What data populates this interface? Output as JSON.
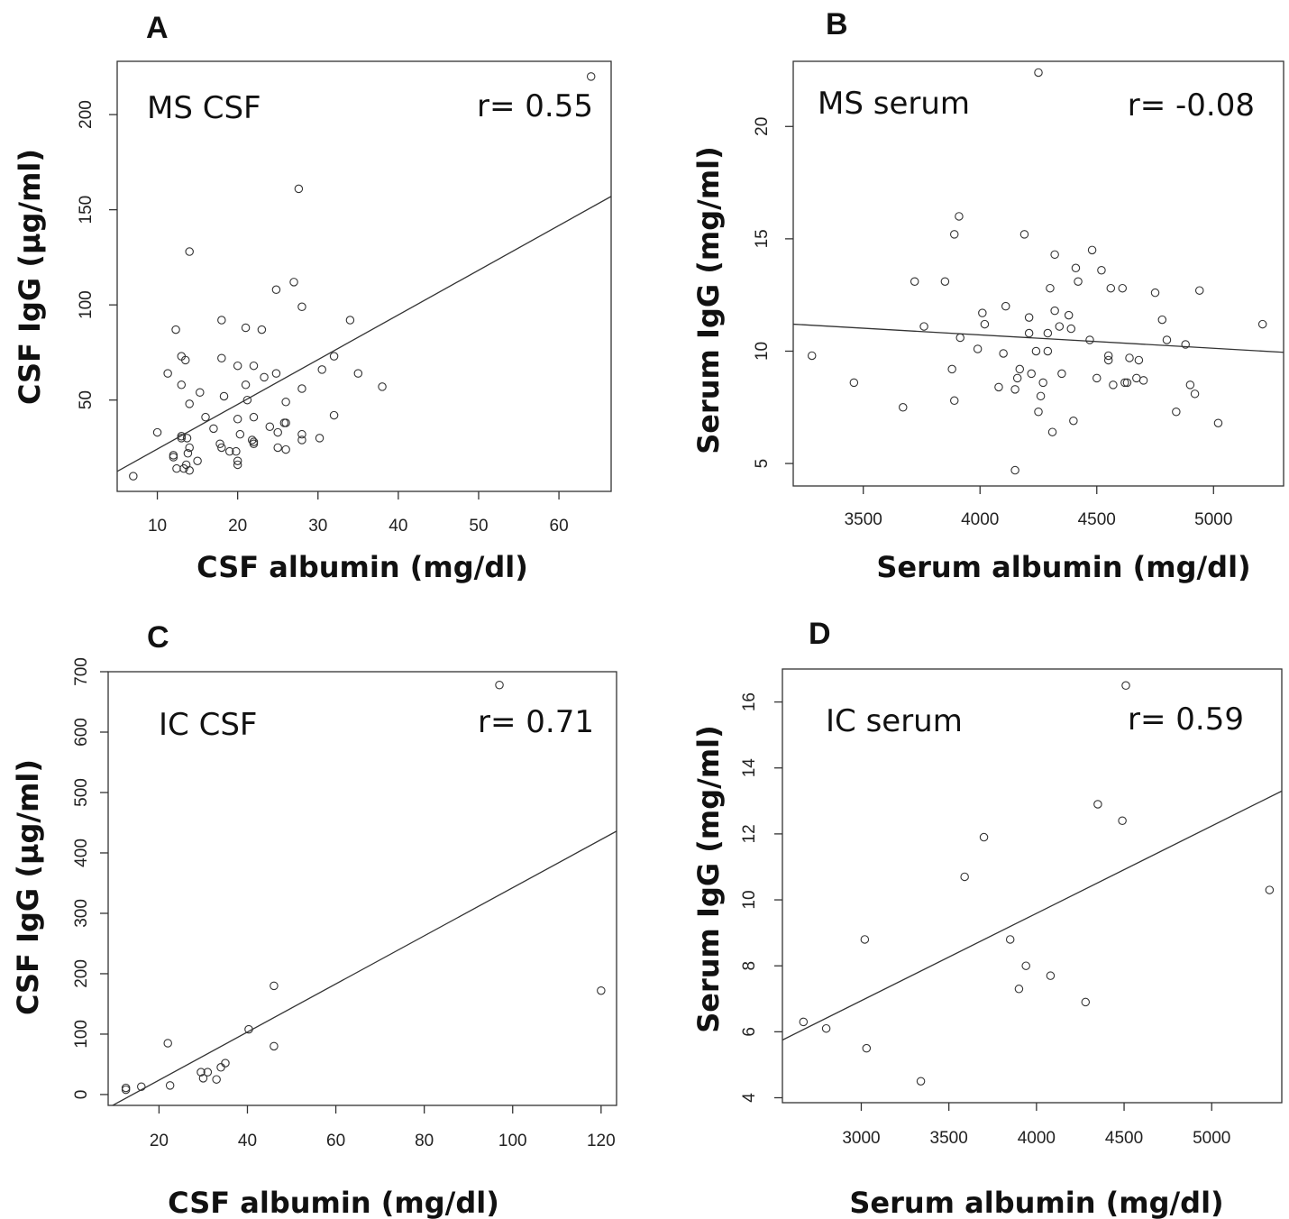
{
  "chart_data": [
    {
      "type": "scatter",
      "panel": "A",
      "label": "MS CSF",
      "r_text": "r= 0.55",
      "xlabel": "CSF albumin (mg/dl)",
      "ylabel": "CSF IgG (µg/ml)",
      "xlim": [
        5,
        66.5
      ],
      "ylim": [
        2,
        228
      ],
      "xticks": [
        10,
        20,
        30,
        40,
        50,
        60
      ],
      "yticks": [
        50,
        100,
        150,
        200
      ],
      "ytick_rotated": true,
      "fit": [
        [
          5,
          12.5
        ],
        [
          66.5,
          157
        ]
      ],
      "points": [
        [
          7,
          10
        ],
        [
          10,
          33
        ],
        [
          11.3,
          64
        ],
        [
          12,
          21
        ],
        [
          12,
          20
        ],
        [
          12.3,
          87
        ],
        [
          12.4,
          14
        ],
        [
          13,
          31
        ],
        [
          13,
          73
        ],
        [
          13,
          58
        ],
        [
          13,
          30
        ],
        [
          13.3,
          14
        ],
        [
          13.5,
          71
        ],
        [
          13.6,
          16
        ],
        [
          13.7,
          30
        ],
        [
          13.8,
          22
        ],
        [
          14,
          25
        ],
        [
          14,
          13
        ],
        [
          14,
          48
        ],
        [
          14,
          128
        ],
        [
          15,
          18
        ],
        [
          15.3,
          54
        ],
        [
          16,
          41
        ],
        [
          17,
          35
        ],
        [
          17.8,
          27
        ],
        [
          18,
          25
        ],
        [
          18,
          72
        ],
        [
          18,
          92
        ],
        [
          18.3,
          52
        ],
        [
          19,
          23
        ],
        [
          19.8,
          23
        ],
        [
          20,
          40
        ],
        [
          20,
          18
        ],
        [
          20,
          16
        ],
        [
          20,
          68
        ],
        [
          20.3,
          32
        ],
        [
          21,
          58
        ],
        [
          21,
          88
        ],
        [
          21.2,
          50
        ],
        [
          21.8,
          29
        ],
        [
          22,
          68
        ],
        [
          22,
          27
        ],
        [
          22,
          41
        ],
        [
          22,
          28
        ],
        [
          23,
          87
        ],
        [
          23.3,
          62
        ],
        [
          24,
          36
        ],
        [
          24.8,
          64
        ],
        [
          24.8,
          108
        ],
        [
          25,
          25
        ],
        [
          25,
          33
        ],
        [
          25.8,
          38
        ],
        [
          26,
          38
        ],
        [
          26,
          24
        ],
        [
          26,
          49
        ],
        [
          27,
          112
        ],
        [
          27.6,
          161
        ],
        [
          28,
          32
        ],
        [
          28,
          29
        ],
        [
          28,
          56
        ],
        [
          28,
          99
        ],
        [
          30.2,
          30
        ],
        [
          30.5,
          66
        ],
        [
          32,
          73
        ],
        [
          32,
          42
        ],
        [
          34,
          92
        ],
        [
          35,
          64
        ],
        [
          38,
          57
        ],
        [
          64,
          220
        ]
      ]
    },
    {
      "type": "scatter",
      "panel": "B",
      "label": "MS serum",
      "r_text": "r= -0.08",
      "xlabel": "Serum albumin (mg/dl)",
      "ylabel": "Serum IgG (mg/ml)",
      "xlim": [
        3200,
        5300
      ],
      "ylim": [
        4,
        22.9
      ],
      "xticks": [
        3500,
        4000,
        4500,
        5000
      ],
      "yticks": [
        5,
        10,
        15,
        20
      ],
      "ytick_rotated": true,
      "fit": [
        [
          3200,
          11.2
        ],
        [
          5300,
          9.95
        ]
      ],
      "points": [
        [
          3280,
          9.8
        ],
        [
          3460,
          8.6
        ],
        [
          3670,
          7.5
        ],
        [
          3720,
          13.1
        ],
        [
          3760,
          11.1
        ],
        [
          3850,
          13.1
        ],
        [
          3880,
          9.2
        ],
        [
          3890,
          7.8
        ],
        [
          3890,
          15.2
        ],
        [
          3910,
          16
        ],
        [
          3915,
          10.6
        ],
        [
          3990,
          10.1
        ],
        [
          4010,
          11.7
        ],
        [
          4020,
          11.2
        ],
        [
          4080,
          8.4
        ],
        [
          4110,
          12
        ],
        [
          4100,
          9.9
        ],
        [
          4150,
          4.7
        ],
        [
          4150,
          8.3
        ],
        [
          4160,
          8.8
        ],
        [
          4170,
          9.2
        ],
        [
          4190,
          15.2
        ],
        [
          4210,
          11.5
        ],
        [
          4210,
          10.8
        ],
        [
          4220,
          9
        ],
        [
          4240,
          10
        ],
        [
          4250,
          7.3
        ],
        [
          4250,
          22.4
        ],
        [
          4260,
          8
        ],
        [
          4270,
          8.6
        ],
        [
          4290,
          10.8
        ],
        [
          4290,
          10
        ],
        [
          4300,
          12.8
        ],
        [
          4310,
          6.4
        ],
        [
          4320,
          11.8
        ],
        [
          4320,
          14.3
        ],
        [
          4340,
          11.1
        ],
        [
          4350,
          9
        ],
        [
          4380,
          11.6
        ],
        [
          4390,
          11
        ],
        [
          4400,
          6.9
        ],
        [
          4410,
          13.7
        ],
        [
          4420,
          13.1
        ],
        [
          4470,
          10.5
        ],
        [
          4480,
          14.5
        ],
        [
          4500,
          8.8
        ],
        [
          4520,
          13.6
        ],
        [
          4550,
          9.6
        ],
        [
          4550,
          9.8
        ],
        [
          4560,
          12.8
        ],
        [
          4570,
          8.5
        ],
        [
          4610,
          12.8
        ],
        [
          4620,
          8.6
        ],
        [
          4630,
          8.6
        ],
        [
          4640,
          9.7
        ],
        [
          4670,
          8.8
        ],
        [
          4680,
          9.6
        ],
        [
          4700,
          8.7
        ],
        [
          4750,
          12.6
        ],
        [
          4780,
          11.4
        ],
        [
          4800,
          10.5
        ],
        [
          4840,
          7.3
        ],
        [
          4880,
          10.3
        ],
        [
          4900,
          8.5
        ],
        [
          4920,
          8.1
        ],
        [
          4940,
          12.7
        ],
        [
          5020,
          6.8
        ],
        [
          5210,
          11.2
        ]
      ]
    },
    {
      "type": "scatter",
      "panel": "C",
      "label": "IC CSF",
      "r_text": "r= 0.71",
      "xlabel": "CSF albumin (mg/dl)",
      "ylabel": "CSF IgG (µg/ml)",
      "xlim": [
        8.5,
        123.5
      ],
      "ylim": [
        -18,
        700
      ],
      "xticks": [
        20,
        40,
        60,
        80,
        100,
        120
      ],
      "yticks": [
        0,
        100,
        200,
        300,
        400,
        500,
        600,
        700
      ],
      "ytick_rotated": true,
      "fit": [
        [
          8.5,
          -22
        ],
        [
          123.5,
          436
        ]
      ],
      "points": [
        [
          12.5,
          8
        ],
        [
          12.5,
          11
        ],
        [
          16,
          13
        ],
        [
          22,
          85
        ],
        [
          22.5,
          15
        ],
        [
          29.5,
          37
        ],
        [
          30,
          27
        ],
        [
          31,
          37
        ],
        [
          33,
          25
        ],
        [
          34,
          45
        ],
        [
          35,
          52
        ],
        [
          40.3,
          108
        ],
        [
          46,
          80
        ],
        [
          46,
          180
        ],
        [
          97,
          678
        ],
        [
          120,
          172
        ]
      ]
    },
    {
      "type": "scatter",
      "panel": "D",
      "label": "IC serum",
      "r_text": "r= 0.59",
      "xlabel": "Serum albumin (mg/dl)",
      "ylabel": "Serum IgG (mg/ml)",
      "xlim": [
        2550,
        5400
      ],
      "ylim": [
        3.85,
        17
      ],
      "xticks": [
        3000,
        3500,
        4000,
        4500,
        5000
      ],
      "yticks": [
        4,
        6,
        8,
        10,
        12,
        14,
        16
      ],
      "ytick_rotated": true,
      "fit": [
        [
          2550,
          5.75
        ],
        [
          5400,
          13.3
        ]
      ],
      "points": [
        [
          2670,
          6.3
        ],
        [
          2800,
          6.1
        ],
        [
          3020,
          8.8
        ],
        [
          3030,
          5.5
        ],
        [
          3340,
          4.5
        ],
        [
          3590,
          10.7
        ],
        [
          3700,
          11.9
        ],
        [
          3850,
          8.8
        ],
        [
          3900,
          7.3
        ],
        [
          3940,
          8
        ],
        [
          4080,
          7.7
        ],
        [
          4280,
          6.9
        ],
        [
          4350,
          12.9
        ],
        [
          4490,
          12.4
        ],
        [
          4510,
          16.5
        ],
        [
          5330,
          10.3
        ]
      ]
    }
  ]
}
